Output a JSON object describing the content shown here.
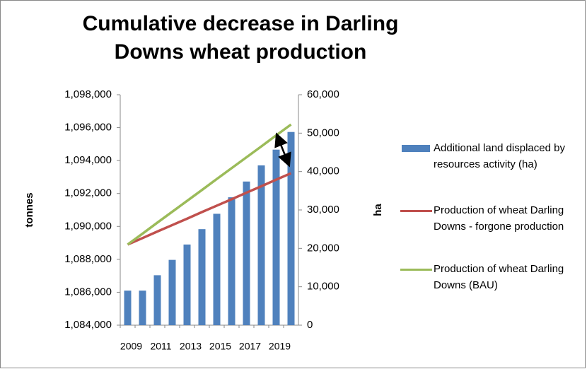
{
  "chart_data": {
    "type": "bar_line_combo",
    "title": "Cumulative decrease in Darling Downs wheat production",
    "y_label": "tonnes",
    "y2_label": "ha",
    "categories": [
      "2009",
      null,
      "2011",
      null,
      "2013",
      null,
      "2015",
      null,
      "2017",
      null,
      "2019",
      null
    ],
    "ylim": [
      1084000,
      1098000
    ],
    "yticks": [
      {
        "value": 1084000,
        "label": "1,084,000"
      },
      {
        "value": 1086000,
        "label": "1,086,000"
      },
      {
        "value": 1088000,
        "label": "1,088,000"
      },
      {
        "value": 1090000,
        "label": "1,090,000"
      },
      {
        "value": 1092000,
        "label": "1,092,000"
      },
      {
        "value": 1094000,
        "label": "1,094,000"
      },
      {
        "value": 1096000,
        "label": "1,096,000"
      },
      {
        "value": 1098000,
        "label": "1,098,000"
      }
    ],
    "y2lim": [
      0,
      60000
    ],
    "y2ticks": [
      0,
      {
        "value": 10000,
        "label": "10,000"
      },
      {
        "value": 20000,
        "label": "20,000"
      },
      {
        "value": 30000,
        "label": "30,000"
      },
      {
        "value": 40000,
        "label": "40,000"
      },
      {
        "value": 50000,
        "label": "50,000"
      },
      {
        "value": 60000,
        "label": "60,000"
      }
    ],
    "grid": false,
    "legend": "right",
    "series": [
      {
        "name": "Additional land displaced by resources activity (ha)",
        "kind": "bar",
        "axis": "y2",
        "color": "#4f81bd",
        "values": [
          9000,
          9000,
          13000,
          17000,
          21000,
          25000,
          29000,
          33300,
          37400,
          41600,
          45700,
          50300
        ]
      },
      {
        "name": "Production of wheat Darling Downs - forgone production",
        "kind": "line",
        "color": "#c0504d",
        "values": [
          1088900,
          1089290,
          1089690,
          1090080,
          1090470,
          1090870,
          1091260,
          1091650,
          1092050,
          1092440,
          1092840,
          1093230
        ]
      },
      {
        "name": "Production of wheat Darling Downs (BAU)",
        "kind": "line",
        "color": "#9bbb59",
        "values": [
          1088900,
          1089560,
          1090230,
          1090890,
          1091550,
          1092210,
          1092880,
          1093540,
          1094200,
          1094860,
          1095530,
          1096190
        ]
      }
    ]
  }
}
